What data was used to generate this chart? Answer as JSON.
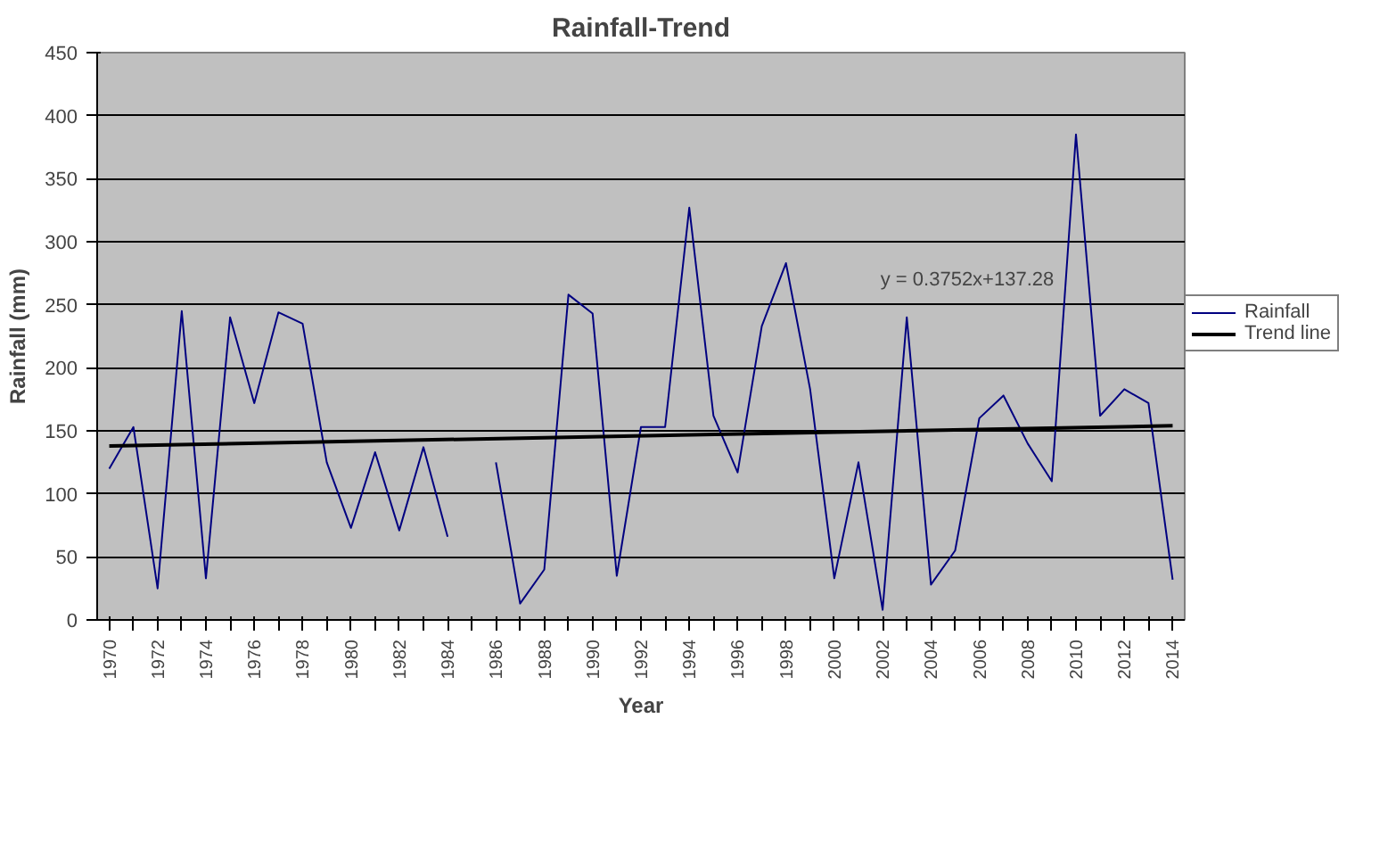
{
  "chart_data": {
    "type": "line",
    "title": "Rainfall-Trend",
    "xlabel": "Year",
    "ylabel": "Rainfall (mm)",
    "x": [
      1970,
      1971,
      1972,
      1973,
      1974,
      1975,
      1976,
      1977,
      1978,
      1979,
      1980,
      1981,
      1982,
      1983,
      1984,
      1985,
      1986,
      1987,
      1988,
      1989,
      1990,
      1991,
      1992,
      1993,
      1994,
      1995,
      1996,
      1997,
      1998,
      1999,
      2000,
      2001,
      2002,
      2003,
      2004,
      2005,
      2006,
      2007,
      2008,
      2009,
      2010,
      2011,
      2012,
      2013,
      2014
    ],
    "series": [
      {
        "name": "Rainfall",
        "color": "#000080",
        "values": [
          120,
          153,
          25,
          245,
          33,
          240,
          172,
          244,
          235,
          125,
          73,
          133,
          71,
          137,
          66,
          null,
          125,
          13,
          40,
          258,
          243,
          35,
          153,
          153,
          327,
          162,
          117,
          233,
          283,
          183,
          33,
          125,
          8,
          240,
          28,
          55,
          160,
          178,
          140,
          110,
          385,
          162,
          183,
          172,
          32
        ]
      },
      {
        "name": "Trend line",
        "color": "#000000",
        "x": [
          1970,
          2014
        ],
        "values": [
          138,
          154
        ]
      }
    ],
    "annotations": [
      "y = 0.3752x+137.28"
    ],
    "xlim": [
      1969.5,
      2014.5
    ],
    "xticks": [
      1970,
      {
        "value": 1971,
        "label": null
      },
      1972,
      {
        "value": 1973,
        "label": null
      },
      1974,
      {
        "value": 1975,
        "label": null
      },
      1976,
      {
        "value": 1977,
        "label": null
      },
      1978,
      {
        "value": 1979,
        "label": null
      },
      1980,
      {
        "value": 1981,
        "label": null
      },
      1982,
      {
        "value": 1983,
        "label": null
      },
      1984,
      {
        "value": 1985,
        "label": null
      },
      1986,
      {
        "value": 1987,
        "label": null
      },
      1988,
      {
        "value": 1989,
        "label": null
      },
      1990,
      {
        "value": 1991,
        "label": null
      },
      1992,
      {
        "value": 1993,
        "label": null
      },
      1994,
      {
        "value": 1995,
        "label": null
      },
      1996,
      {
        "value": 1997,
        "label": null
      },
      1998,
      {
        "value": 1999,
        "label": null
      },
      2000,
      {
        "value": 2001,
        "label": null
      },
      2002,
      {
        "value": 2003,
        "label": null
      },
      2004,
      {
        "value": 2005,
        "label": null
      },
      2006,
      {
        "value": 2007,
        "label": null
      },
      2008,
      {
        "value": 2009,
        "label": null
      },
      2010,
      {
        "value": 2011,
        "label": null
      },
      2012,
      {
        "value": 2013,
        "label": null
      },
      2014
    ],
    "ylim": [
      0,
      450
    ],
    "yticks": [
      0,
      50,
      100,
      150,
      200,
      250,
      300,
      350,
      400,
      450
    ],
    "grid": "y",
    "legend": "right",
    "marker": "none",
    "line_style": "solid"
  }
}
